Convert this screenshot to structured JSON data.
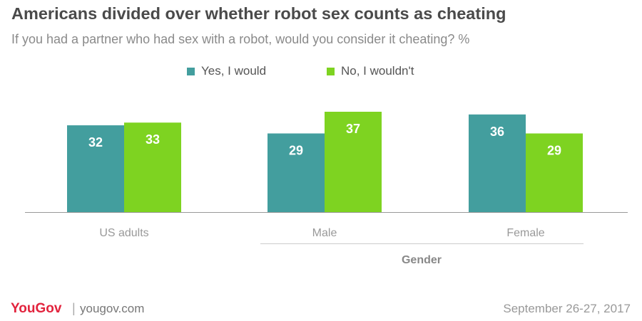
{
  "colors": {
    "yes": "#439e9e",
    "no": "#7ed321",
    "baseline": "#999999",
    "label": "#ffffff"
  },
  "chart_data": {
    "type": "bar",
    "title": "Americans divided over whether robot sex counts as cheating",
    "subtitle": "If you had a partner who had sex with a robot, would you consider it cheating? %",
    "categories": [
      "US adults",
      "Male",
      "Female"
    ],
    "group_label": "Gender",
    "series": [
      {
        "name": "Yes, I would",
        "values": [
          32,
          29,
          36
        ]
      },
      {
        "name": "No, I wouldn't",
        "values": [
          33,
          37,
          29
        ]
      }
    ],
    "ylim": [
      0,
      40
    ],
    "grid": false,
    "legend": "top-center"
  },
  "footer": {
    "logo": "YouGov",
    "separator": "|",
    "site": "yougov.com",
    "date": "September 26-27, 2017"
  }
}
